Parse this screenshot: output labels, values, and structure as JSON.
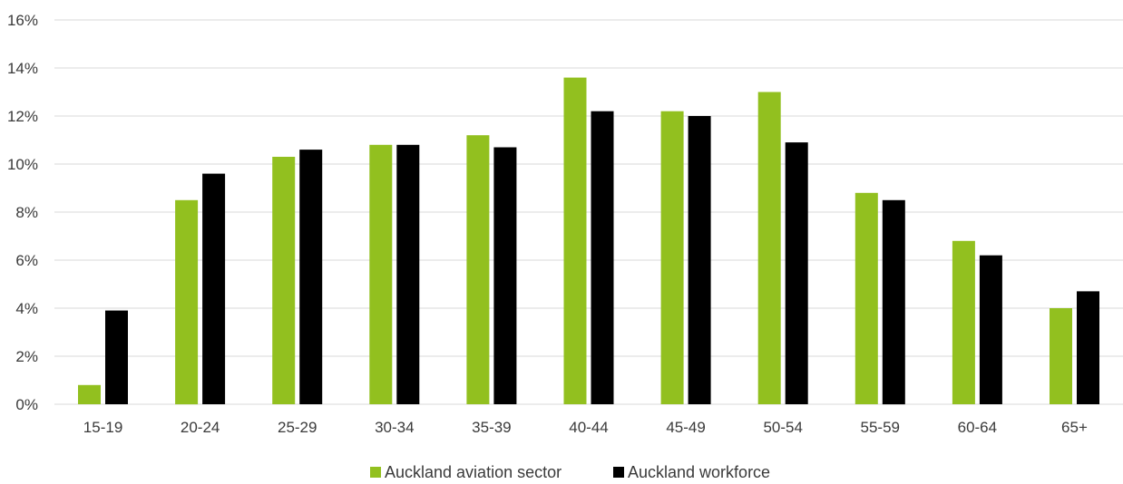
{
  "chart_data": {
    "type": "bar",
    "title": "",
    "xlabel": "",
    "ylabel": "",
    "categories": [
      "15-19",
      "20-24",
      "25-29",
      "30-34",
      "35-39",
      "40-44",
      "45-49",
      "50-54",
      "55-59",
      "60-64",
      "65+"
    ],
    "series": [
      {
        "name": "Auckland aviation sector",
        "color": "#92c01f",
        "values": [
          0.8,
          8.5,
          10.3,
          10.8,
          11.2,
          13.6,
          12.2,
          13.0,
          8.8,
          6.8,
          4.0
        ]
      },
      {
        "name": "Auckland workforce",
        "color": "#000000",
        "values": [
          3.9,
          9.6,
          10.6,
          10.8,
          10.7,
          12.2,
          12.0,
          10.9,
          8.5,
          6.2,
          4.7
        ]
      }
    ],
    "ylim": [
      0,
      16
    ],
    "yticks": [
      0,
      2,
      4,
      6,
      8,
      10,
      12,
      14,
      16
    ],
    "ytick_labels": [
      "0%",
      "2%",
      "4%",
      "6%",
      "8%",
      "10%",
      "12%",
      "14%",
      "16%"
    ],
    "grid": true,
    "gridline_color": "#d9d9d9",
    "legend_position": "bottom-center"
  }
}
